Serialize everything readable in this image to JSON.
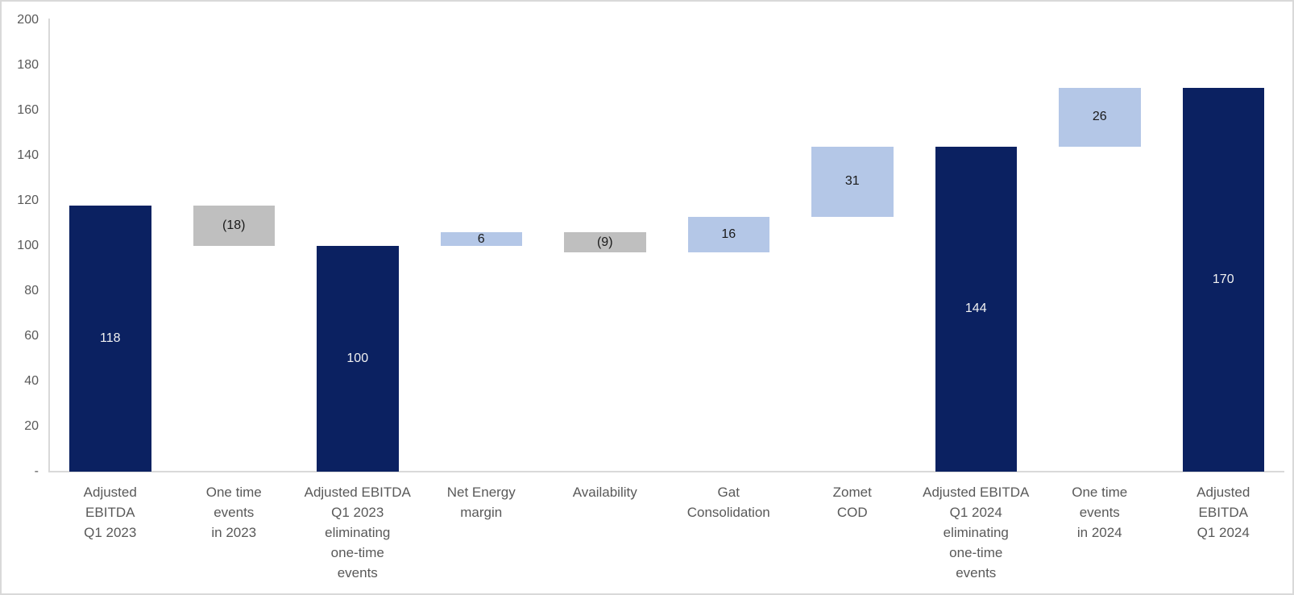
{
  "chart_data": {
    "type": "bar",
    "subtype": "waterfall",
    "title": "",
    "xlabel": "",
    "ylabel": "",
    "ylim": [
      0,
      200
    ],
    "grid": "off",
    "legend": "none",
    "yticks": [
      {
        "value": 200,
        "label": "200"
      },
      {
        "value": 180,
        "label": "180"
      },
      {
        "value": 160,
        "label": "160"
      },
      {
        "value": 140,
        "label": "140"
      },
      {
        "value": 120,
        "label": "120"
      },
      {
        "value": 100,
        "label": "100"
      },
      {
        "value": 80,
        "label": "80"
      },
      {
        "value": 60,
        "label": "60"
      },
      {
        "value": 40,
        "label": "40"
      },
      {
        "value": 20,
        "label": "20"
      },
      {
        "value": 0,
        "label": "-"
      }
    ],
    "bars": [
      {
        "category": "Adjusted EBITDA Q1 2023",
        "label_lines": [
          "Adjusted",
          "EBITDA",
          "Q1 2023"
        ],
        "value": 118,
        "start": 0,
        "end": 118,
        "display": "118",
        "role": "total"
      },
      {
        "category": "One time events in 2023",
        "label_lines": [
          "One time",
          "events",
          "in 2023"
        ],
        "value": -18,
        "start": 100,
        "end": 118,
        "display": "(18)",
        "role": "decrease"
      },
      {
        "category": "Adjusted EBITDA Q1 2023 eliminating one-time events",
        "label_lines": [
          "Adjusted EBITDA",
          "Q1 2023",
          "eliminating",
          "one-time",
          "events"
        ],
        "value": 100,
        "start": 0,
        "end": 100,
        "display": "100",
        "role": "total"
      },
      {
        "category": "Net Energy margin",
        "label_lines": [
          "Net Energy",
          "margin"
        ],
        "value": 6,
        "start": 100,
        "end": 106,
        "display": "6",
        "role": "increase"
      },
      {
        "category": "Availability",
        "label_lines": [
          "Availability"
        ],
        "value": -9,
        "start": 97,
        "end": 106,
        "display": "(9)",
        "role": "decrease"
      },
      {
        "category": "Gat Consolidation",
        "label_lines": [
          "Gat",
          "Consolidation"
        ],
        "value": 16,
        "start": 97,
        "end": 113,
        "display": "16",
        "role": "increase"
      },
      {
        "category": "Zomet COD",
        "label_lines": [
          "Zomet",
          "COD"
        ],
        "value": 31,
        "start": 113,
        "end": 144,
        "display": "31",
        "role": "increase"
      },
      {
        "category": "Adjusted EBITDA Q1 2024 eliminating one-time events",
        "label_lines": [
          "Adjusted EBITDA",
          "Q1 2024",
          "eliminating",
          "one-time",
          "events"
        ],
        "value": 144,
        "start": 0,
        "end": 144,
        "display": "144",
        "role": "total"
      },
      {
        "category": "One time events in 2024",
        "label_lines": [
          "One time",
          "events",
          "in 2024"
        ],
        "value": 26,
        "start": 144,
        "end": 170,
        "display": "26",
        "role": "increase"
      },
      {
        "category": "Adjusted EBITDA Q1 2024",
        "label_lines": [
          "Adjusted",
          "EBITDA",
          "Q1 2024"
        ],
        "value": 170,
        "start": 0,
        "end": 170,
        "display": "170",
        "role": "total"
      }
    ]
  },
  "colors": {
    "total_bar": "#0B2161",
    "increase_bar": "#B4C7E7",
    "decrease_bar": "#BFBFBF",
    "value_on_total": "#F2F2F2",
    "value_on_delta": "#1A1A1A",
    "axis_line": "#D9D9D9",
    "axis_text": "#595959",
    "frame_border": "#D9D9D9",
    "background": "#FFFFFF"
  }
}
